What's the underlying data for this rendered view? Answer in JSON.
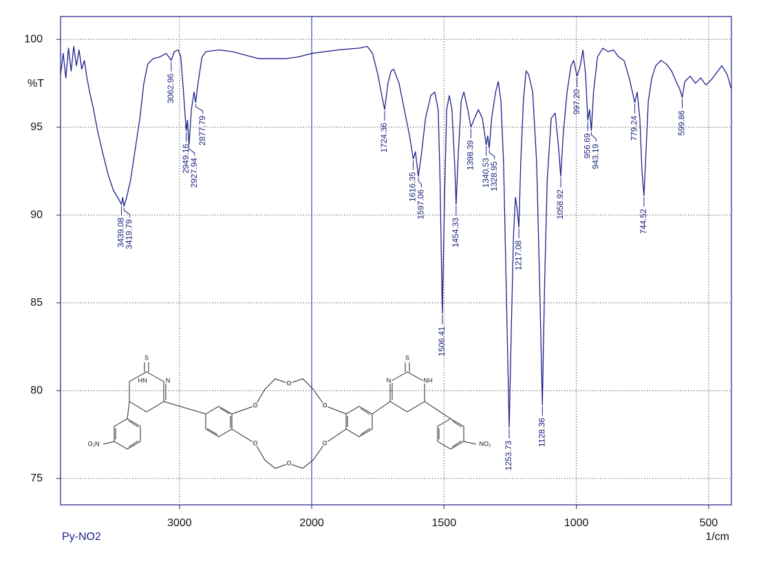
{
  "chart_data": {
    "type": "line",
    "title": "Py-NO2",
    "ylabel": "%T",
    "xlabel": "1/cm",
    "xlim": [
      3900,
      414
    ],
    "x_scale_break": 2000,
    "ylim": [
      73.5,
      101.3
    ],
    "xticks": [
      3000,
      2000,
      1500,
      1000,
      500
    ],
    "yticks": [
      75,
      80,
      85,
      90,
      95,
      100
    ],
    "grid": true,
    "series": [
      {
        "name": "Py-NO2",
        "color": "#1c1f8a",
        "x": [
          3900,
          3880,
          3860,
          3840,
          3820,
          3800,
          3780,
          3760,
          3740,
          3720,
          3700,
          3680,
          3650,
          3620,
          3580,
          3540,
          3500,
          3460,
          3439.08,
          3430,
          3419.79,
          3400,
          3370,
          3340,
          3300,
          3270,
          3240,
          3200,
          3150,
          3100,
          3062.96,
          3040,
          3010,
          2990,
          2970,
          2949.16,
          2940,
          2927.94,
          2910,
          2890,
          2877.79,
          2860,
          2830,
          2800,
          2700,
          2600,
          2500,
          2400,
          2300,
          2200,
          2100,
          2000,
          1900,
          1820,
          1790,
          1770,
          1750,
          1735,
          1724.36,
          1712,
          1700,
          1690,
          1670,
          1650,
          1630,
          1616.35,
          1608,
          1597.06,
          1585,
          1570,
          1550,
          1535,
          1522,
          1515,
          1506.41,
          1498,
          1490,
          1480,
          1470,
          1460,
          1454.33,
          1446,
          1435,
          1425,
          1410,
          1398.39,
          1385,
          1370,
          1355,
          1340.53,
          1335,
          1328.95,
          1320,
          1305,
          1295,
          1285,
          1275,
          1265,
          1253.73,
          1245,
          1237,
          1230,
          1225,
          1217.08,
          1210,
          1200,
          1190,
          1180,
          1165,
          1150,
          1140,
          1128.36,
          1120,
          1110,
          1095,
          1080,
          1068,
          1058.92,
          1050,
          1035,
          1020,
          1010,
          997.2,
          985,
          975,
          965,
          956.69,
          950,
          943.19,
          935,
          920,
          900,
          880,
          860,
          840,
          820,
          800,
          785,
          779.24,
          770,
          760,
          752,
          744.52,
          737,
          728,
          715,
          700,
          680,
          660,
          640,
          620,
          610,
          599.86,
          590,
          570,
          550,
          530,
          510,
          490,
          470,
          450,
          430,
          415
        ],
        "values": [
          98.0,
          99.2,
          97.8,
          99.5,
          98.2,
          99.6,
          98.5,
          99.4,
          98.3,
          98.8,
          97.8,
          97.0,
          96.0,
          94.8,
          93.5,
          92.3,
          91.4,
          90.9,
          90.6,
          91.0,
          90.5,
          91.0,
          92.0,
          93.5,
          95.5,
          97.5,
          98.6,
          98.9,
          99.0,
          99.2,
          98.8,
          99.3,
          99.4,
          99.0,
          97.0,
          94.8,
          95.4,
          94.0,
          96.0,
          97.0,
          96.4,
          97.5,
          99.0,
          99.3,
          99.4,
          99.3,
          99.1,
          98.9,
          98.9,
          98.9,
          99.0,
          99.2,
          99.4,
          99.5,
          99.6,
          99.2,
          98.0,
          96.8,
          96.0,
          97.5,
          98.2,
          98.3,
          97.5,
          96.0,
          94.5,
          93.2,
          93.6,
          92.2,
          93.5,
          95.5,
          96.8,
          97.0,
          96.0,
          92.0,
          84.4,
          91.0,
          96.0,
          96.8,
          96.0,
          93.0,
          90.6,
          93.5,
          96.5,
          97.0,
          96.0,
          95.0,
          95.5,
          96.0,
          95.5,
          94.0,
          94.5,
          93.8,
          95.5,
          97.0,
          97.6,
          96.5,
          93.0,
          86.0,
          77.9,
          84.0,
          89.0,
          91.0,
          90.5,
          89.3,
          93.0,
          96.5,
          98.2,
          98.0,
          97.0,
          93.0,
          87.0,
          79.2,
          86.0,
          92.0,
          95.5,
          95.8,
          94.0,
          92.2,
          94.5,
          97.0,
          98.5,
          98.8,
          97.9,
          98.5,
          99.4,
          98.0,
          95.4,
          96.0,
          94.8,
          97.0,
          99.0,
          99.5,
          99.3,
          99.4,
          99.0,
          98.8,
          97.8,
          96.8,
          96.4,
          97.0,
          95.5,
          92.5,
          91.1,
          93.5,
          96.5,
          97.8,
          98.5,
          98.8,
          98.6,
          98.2,
          97.5,
          97.2,
          96.7,
          97.6,
          97.9,
          97.5,
          97.8,
          97.4,
          97.7,
          98.1,
          98.5,
          98.0,
          97.2
        ]
      }
    ],
    "peaks": {
      "x": [
        3439.08,
        3419.79,
        3062.96,
        2949.16,
        2927.94,
        2877.79,
        1724.36,
        1616.35,
        1597.06,
        1506.41,
        1454.33,
        1398.39,
        1340.53,
        1328.95,
        1253.73,
        1217.08,
        1128.36,
        1058.92,
        {
          "value": 997.2,
          "label": "997.20"
        },
        956.69,
        943.19,
        779.24,
        744.52,
        599.86
      ],
      "values": [
        90.6,
        90.5,
        98.8,
        94.8,
        94.0,
        96.4,
        96.0,
        93.2,
        92.2,
        84.4,
        90.6,
        95.0,
        94.0,
        93.8,
        77.9,
        89.3,
        79.2,
        92.2,
        97.9,
        95.4,
        94.8,
        96.4,
        91.1,
        96.7
      ]
    },
    "structure": {
      "labels": [
        "S",
        "HN",
        "N",
        "O₂N",
        "O",
        "O",
        "O",
        "O",
        "O",
        "O",
        "S",
        "N",
        "NH",
        "NO₂"
      ]
    }
  }
}
